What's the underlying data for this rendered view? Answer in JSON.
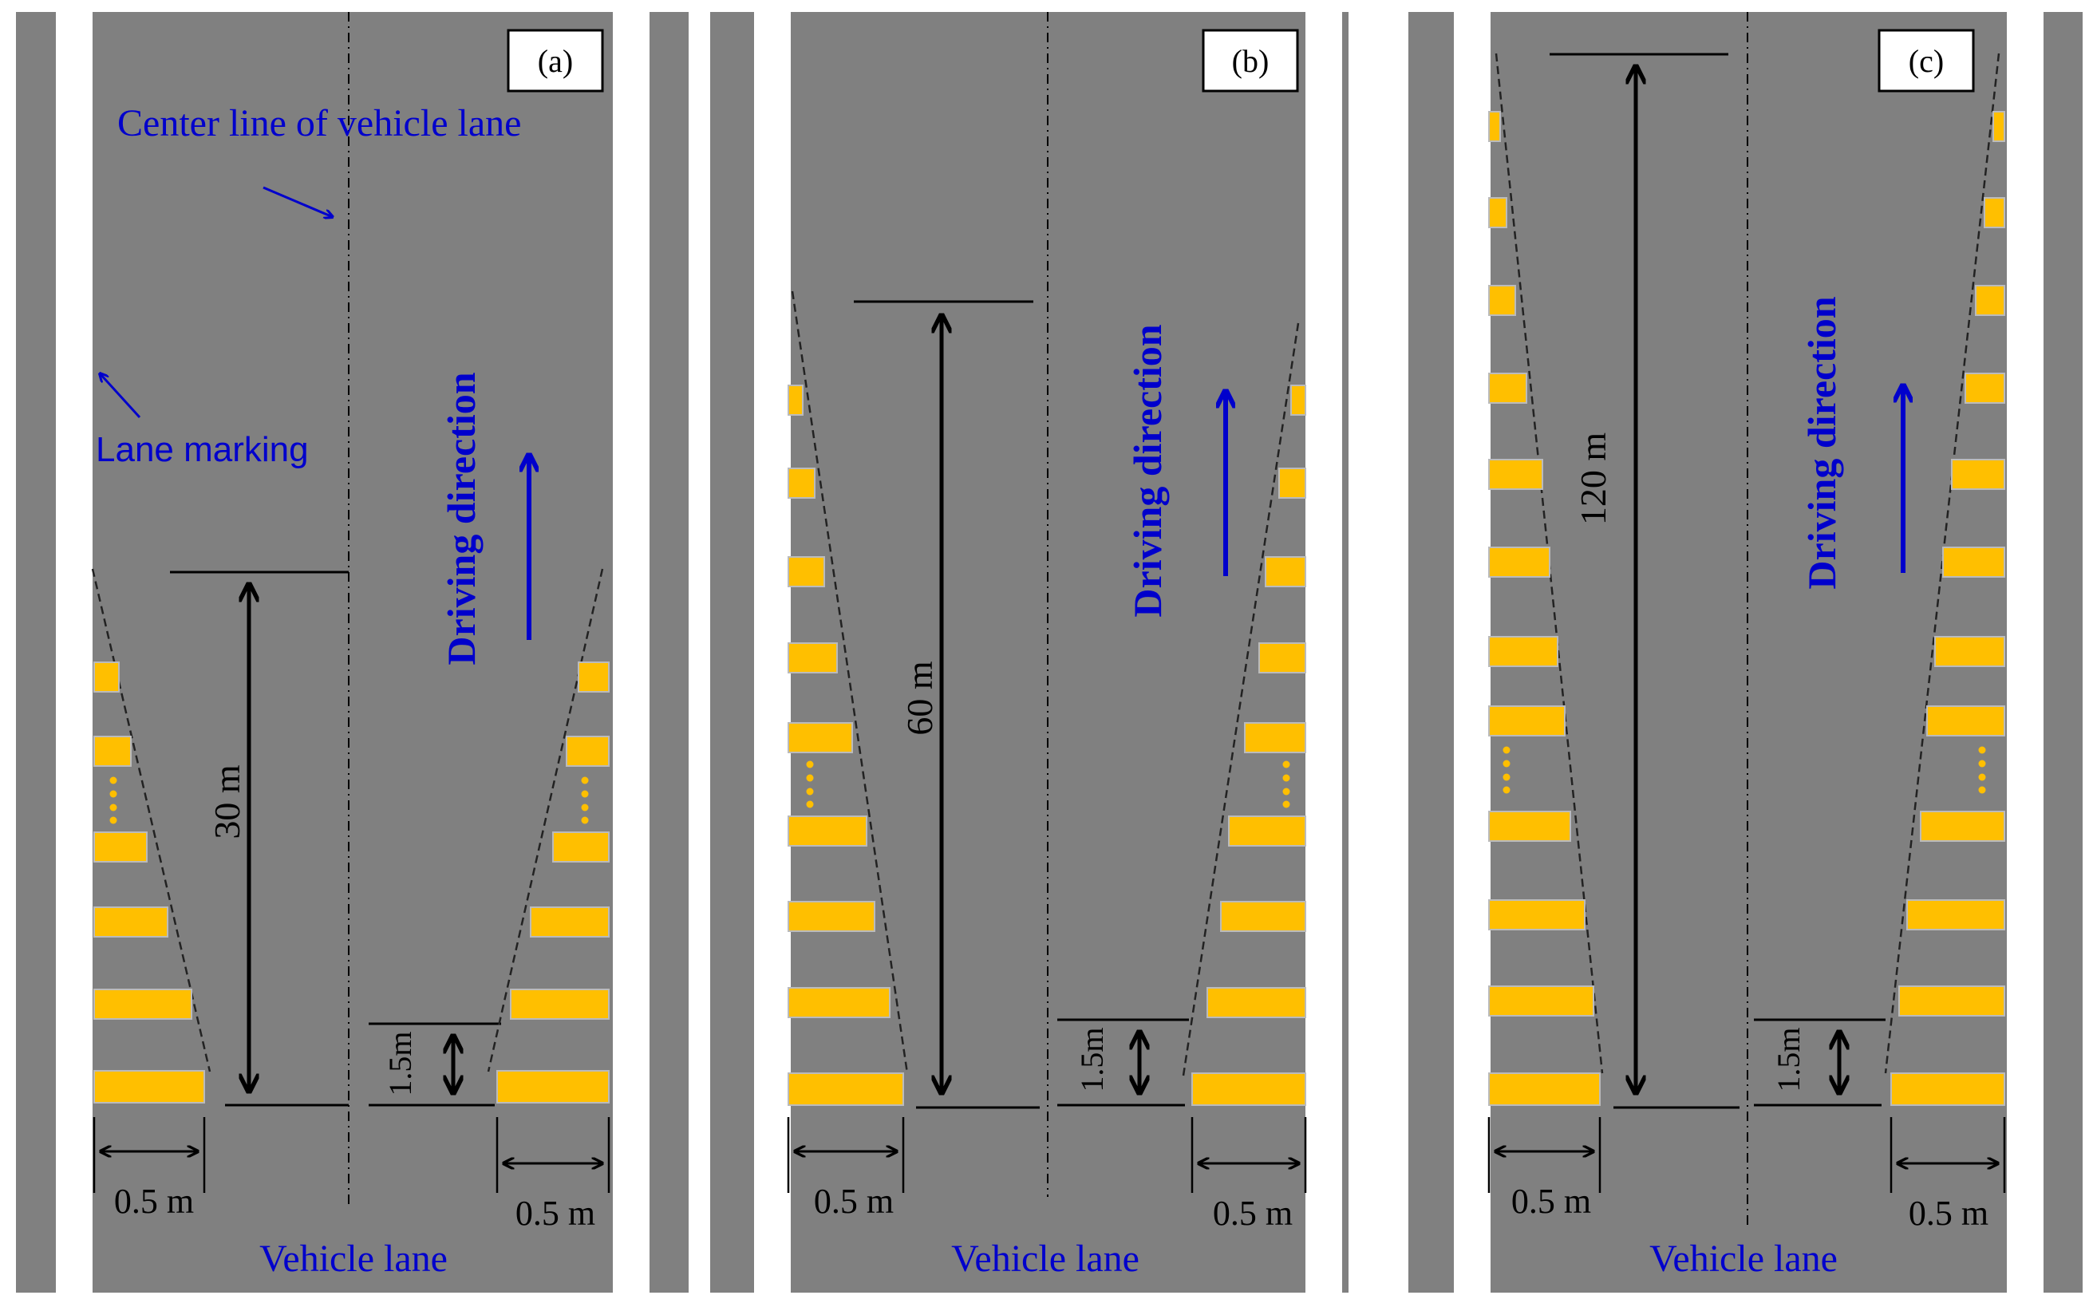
{
  "panels": [
    {
      "id": "a",
      "label": "(a)",
      "length_label": "30 m",
      "gap_label": "1.5m",
      "width_label_left": "0.5 m",
      "width_label_right": "0.5 m",
      "lane_label": "Vehicle lane",
      "direction_label": "Driving direction",
      "center_line_annotation": "Center line of vehicle lane",
      "lane_marking_annotation": "Lane marking"
    },
    {
      "id": "b",
      "label": "(b)",
      "length_label": "60 m",
      "gap_label": "1.5m",
      "width_label_left": "0.5 m",
      "width_label_right": "0.5 m",
      "lane_label": "Vehicle lane",
      "direction_label": "Driving direction"
    },
    {
      "id": "c",
      "label": "(c)",
      "length_label": "120 m",
      "gap_label": "1.5m",
      "width_label_left": "0.5 m",
      "width_label_right": "0.5 m",
      "lane_label": "Vehicle lane",
      "direction_label": "Driving direction"
    }
  ],
  "colors": {
    "road": "#808080",
    "marking": "#ffbf00",
    "lane_marking": "#ffffff",
    "annotation": "#0000cc",
    "dimension": "#000000"
  },
  "icons": [
    "up-arrow-icon",
    "double-headed-arrow-icon",
    "dotted-ellipsis-icon"
  ]
}
